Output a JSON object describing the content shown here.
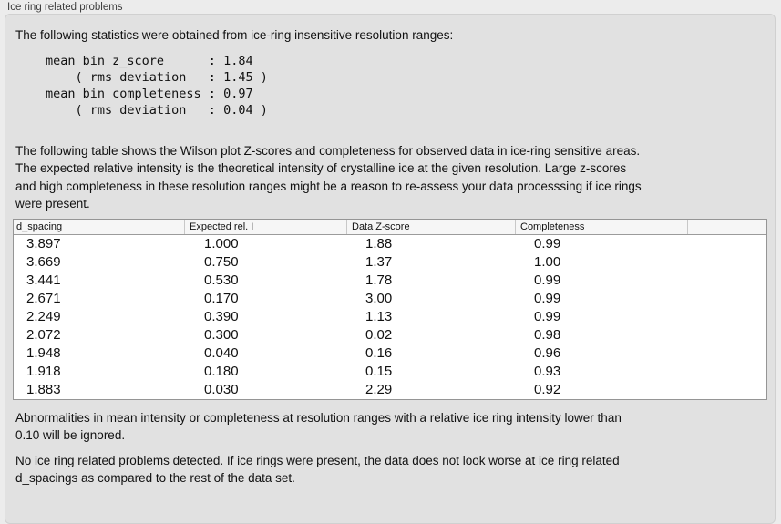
{
  "panel": {
    "title": "Ice ring related problems"
  },
  "intro": "The following statistics were obtained from ice-ring insensitive resolution ranges:",
  "stats_block": "mean bin z_score      : 1.84\n    ( rms deviation   : 1.45 )\nmean bin completeness : 0.97\n    ( rms deviation   : 0.04 )",
  "stats": {
    "mean_bin_z_score": "1.84",
    "z_score_rms_deviation": "1.45",
    "mean_bin_completeness": "0.97",
    "completeness_rms_deviation": "0.04"
  },
  "table_intro": "The following table shows the Wilson plot Z-scores and completeness for observed data in ice-ring sensitive areas.\nThe expected relative intensity is the theoretical intensity of crystalline ice at the given resolution. Large z-scores\nand high completeness in these resolution ranges might be a reason to re-assess your data processsing if ice rings\nwere present.",
  "table": {
    "columns": [
      "d_spacing",
      "Expected rel. I",
      "Data Z-score",
      "Completeness"
    ],
    "rows": [
      [
        "3.897",
        "1.000",
        "1.88",
        "0.99"
      ],
      [
        "3.669",
        "0.750",
        "1.37",
        "1.00"
      ],
      [
        "3.441",
        "0.530",
        "1.78",
        "0.99"
      ],
      [
        "2.671",
        "0.170",
        "3.00",
        "0.99"
      ],
      [
        "2.249",
        "0.390",
        "1.13",
        "0.99"
      ],
      [
        "2.072",
        "0.300",
        "0.02",
        "0.98"
      ],
      [
        "1.948",
        "0.040",
        "0.16",
        "0.96"
      ],
      [
        "1.918",
        "0.180",
        "0.15",
        "0.93"
      ],
      [
        "1.883",
        "0.030",
        "2.29",
        "0.92"
      ]
    ]
  },
  "note": "Abnormalities in mean intensity or completeness at resolution ranges with a relative ice ring intensity lower than\n0.10 will be ignored.",
  "conclusion": "No ice ring related problems detected. If ice rings were present, the data does not look worse at ice ring related\nd_spacings as compared to the rest of the data set.",
  "colors": {
    "page_background": "#ececec",
    "groupbox_background": "#e1e1e1",
    "groupbox_border": "#d0d0d0",
    "table_border": "#959595",
    "table_header_background": "#f6f6f6"
  }
}
